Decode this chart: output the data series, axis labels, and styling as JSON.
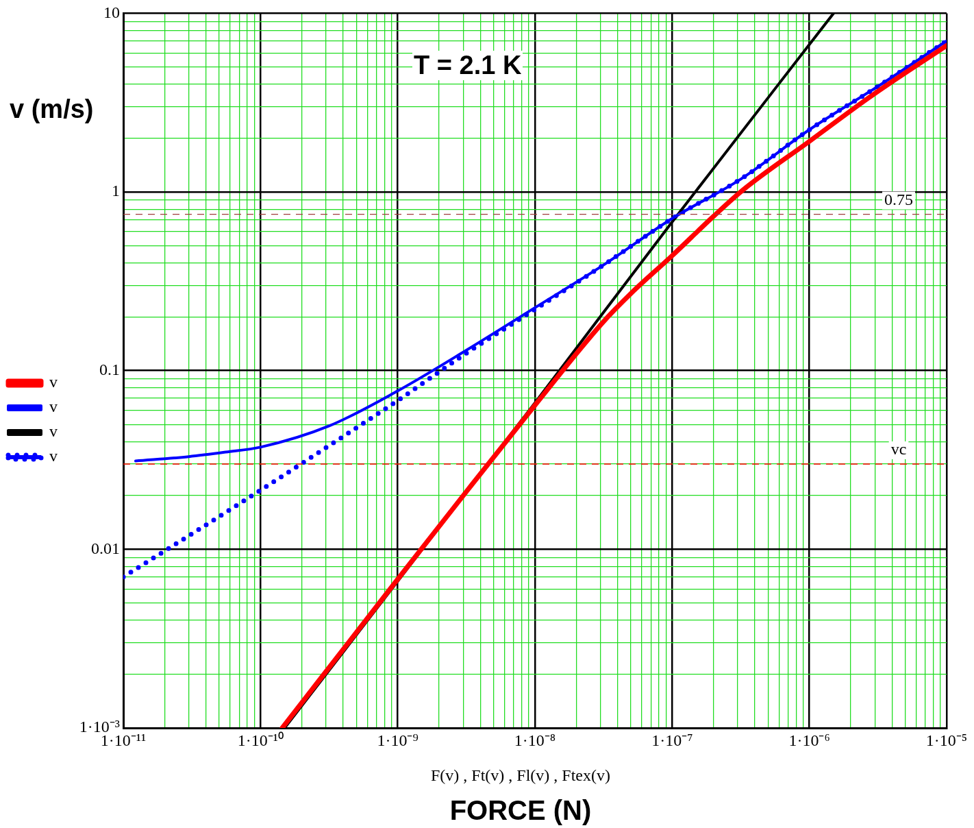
{
  "chart_data": {
    "type": "line",
    "ylabel": "v (m/s)",
    "xlabel": "FORCE (N)",
    "annotations": [
      "T = 2.1 K",
      "F(v) , Ft(v) , Fl(v) , Ftex(v)"
    ],
    "log": "xy",
    "grid": true,
    "legend": "left",
    "marker": "none",
    "xlim": [
      1e-11,
      1e-05
    ],
    "ylim": [
      0.001,
      10
    ],
    "xticks": [
      {
        "value": 1e-11,
        "label": "1·10⁻¹¹"
      },
      {
        "value": 2e-11,
        "label": null
      },
      {
        "value": 3e-11,
        "label": null
      },
      {
        "value": 4e-11,
        "label": null
      },
      {
        "value": 5e-11,
        "label": null
      },
      {
        "value": 6e-11,
        "label": null
      },
      {
        "value": 7e-11,
        "label": null
      },
      {
        "value": 8e-11,
        "label": null
      },
      {
        "value": 9e-11,
        "label": null
      },
      {
        "value": 1e-10,
        "label": "1·10⁻¹⁰"
      },
      {
        "value": 2e-10,
        "label": null
      },
      {
        "value": 3e-10,
        "label": null
      },
      {
        "value": 4e-10,
        "label": null
      },
      {
        "value": 5e-10,
        "label": null
      },
      {
        "value": 6e-10,
        "label": null
      },
      {
        "value": 7e-10,
        "label": null
      },
      {
        "value": 8e-10,
        "label": null
      },
      {
        "value": 9e-10,
        "label": null
      },
      {
        "value": 1e-09,
        "label": "1·10⁻⁹"
      },
      {
        "value": 2e-09,
        "label": null
      },
      {
        "value": 3e-09,
        "label": null
      },
      {
        "value": 4e-09,
        "label": null
      },
      {
        "value": 5e-09,
        "label": null
      },
      {
        "value": 6e-09,
        "label": null
      },
      {
        "value": 7e-09,
        "label": null
      },
      {
        "value": 8e-09,
        "label": null
      },
      {
        "value": 9e-09,
        "label": null
      },
      {
        "value": 1e-08,
        "label": "1·10⁻⁸"
      },
      {
        "value": 2e-08,
        "label": null
      },
      {
        "value": 3e-08,
        "label": null
      },
      {
        "value": 4e-08,
        "label": null
      },
      {
        "value": 5e-08,
        "label": null
      },
      {
        "value": 6e-08,
        "label": null
      },
      {
        "value": 7e-08,
        "label": null
      },
      {
        "value": 8e-08,
        "label": null
      },
      {
        "value": 9e-08,
        "label": null
      },
      {
        "value": 1e-07,
        "label": "1·10⁻⁷"
      },
      {
        "value": 2e-07,
        "label": null
      },
      {
        "value": 3e-07,
        "label": null
      },
      {
        "value": 4e-07,
        "label": null
      },
      {
        "value": 5e-07,
        "label": null
      },
      {
        "value": 6e-07,
        "label": null
      },
      {
        "value": 7e-07,
        "label": null
      },
      {
        "value": 8e-07,
        "label": null
      },
      {
        "value": 9e-07,
        "label": null
      },
      {
        "value": 1e-06,
        "label": "1·10⁻⁶"
      },
      {
        "value": 2e-06,
        "label": null
      },
      {
        "value": 3e-06,
        "label": null
      },
      {
        "value": 4e-06,
        "label": null
      },
      {
        "value": 5e-06,
        "label": null
      },
      {
        "value": 6e-06,
        "label": null
      },
      {
        "value": 7e-06,
        "label": null
      },
      {
        "value": 8e-06,
        "label": null
      },
      {
        "value": 9e-06,
        "label": null
      },
      {
        "value": 1e-05,
        "label": "1·10⁻⁵"
      }
    ],
    "yticks": [
      {
        "value": 0.001,
        "label": "1·10⁻³"
      },
      {
        "value": 0.002,
        "label": null
      },
      {
        "value": 0.003,
        "label": null
      },
      {
        "value": 0.004,
        "label": null
      },
      {
        "value": 0.005,
        "label": null
      },
      {
        "value": 0.006,
        "label": null
      },
      {
        "value": 0.007,
        "label": null
      },
      {
        "value": 0.008,
        "label": null
      },
      {
        "value": 0.009,
        "label": null
      },
      0.01,
      {
        "value": 0.02,
        "label": null
      },
      {
        "value": 0.03,
        "label": null
      },
      {
        "value": 0.04,
        "label": null
      },
      {
        "value": 0.05,
        "label": null
      },
      {
        "value": 0.06,
        "label": null
      },
      {
        "value": 0.07,
        "label": null
      },
      {
        "value": 0.08,
        "label": null
      },
      {
        "value": 0.09,
        "label": null
      },
      0.1,
      {
        "value": 0.2,
        "label": null
      },
      {
        "value": 0.3,
        "label": null
      },
      {
        "value": 0.4,
        "label": null
      },
      {
        "value": 0.5,
        "label": null
      },
      {
        "value": 0.6,
        "label": null
      },
      {
        "value": 0.7,
        "label": null
      },
      {
        "value": 0.8,
        "label": null
      },
      {
        "value": 0.9,
        "label": null
      },
      1,
      {
        "value": 2,
        "label": null
      },
      {
        "value": 3,
        "label": null
      },
      {
        "value": 4,
        "label": null
      },
      {
        "value": 5,
        "label": null
      },
      {
        "value": 6,
        "label": null
      },
      {
        "value": 7,
        "label": null
      },
      {
        "value": 8,
        "label": null
      },
      {
        "value": 9,
        "label": null
      },
      10
    ],
    "ref_lines": [
      {
        "axis": "y",
        "value": 0.75,
        "label": "0.75",
        "color": "#a03c3c",
        "line_style": "dashed"
      },
      {
        "axis": "y",
        "value": 0.03,
        "label": "vc",
        "color": "#ff0000",
        "line_style": "dashed"
      }
    ],
    "series": [
      {
        "name": "v",
        "color": "#ff0000",
        "line_style": "solid",
        "x": [
          1.44e-10,
          1e-09,
          3.16e-09,
          1e-08,
          3.1e-08,
          5e-08,
          1e-07,
          2e-07,
          3.3e-07,
          1e-06,
          3e-06,
          1e-05
        ],
        "values": [
          0.001,
          0.0068,
          0.021,
          0.064,
          0.185,
          0.27,
          0.44,
          0.73,
          1.03,
          1.92,
          3.56,
          6.6
        ]
      },
      {
        "name": "v",
        "color": "#0000ff",
        "line_style": "solid",
        "x": [
          1.23e-11,
          3e-11,
          5.6e-11,
          1e-10,
          3.16e-10,
          1e-09,
          3.16e-09,
          1e-08,
          3.16e-08,
          1e-07,
          3.16e-07,
          1e-06,
          3.16e-06,
          1e-05
        ],
        "values": [
          0.0312,
          0.033,
          0.035,
          0.0373,
          0.049,
          0.077,
          0.13,
          0.225,
          0.39,
          0.71,
          1.18,
          2.23,
          3.9,
          7.0
        ]
      },
      {
        "name": "v",
        "color": "#000000",
        "line_style": "solid",
        "x": [
          1.5e-10,
          1e-08,
          1e-07,
          1.5e-06
        ],
        "values": [
          0.001,
          0.066,
          0.68,
          10
        ]
      },
      {
        "name": "v",
        "color": "#0000ff",
        "line_style": "dotted",
        "x": [
          1e-11,
          3.16e-11,
          1e-10,
          3.16e-10,
          1e-09,
          3.16e-09,
          1e-08,
          3.16e-08,
          1e-07,
          3.16e-07,
          1e-06,
          3.16e-06,
          1e-05
        ],
        "values": [
          0.007,
          0.0122,
          0.0214,
          0.038,
          0.068,
          0.125,
          0.22,
          0.39,
          0.71,
          1.18,
          2.23,
          3.9,
          7.0
        ]
      }
    ]
  }
}
